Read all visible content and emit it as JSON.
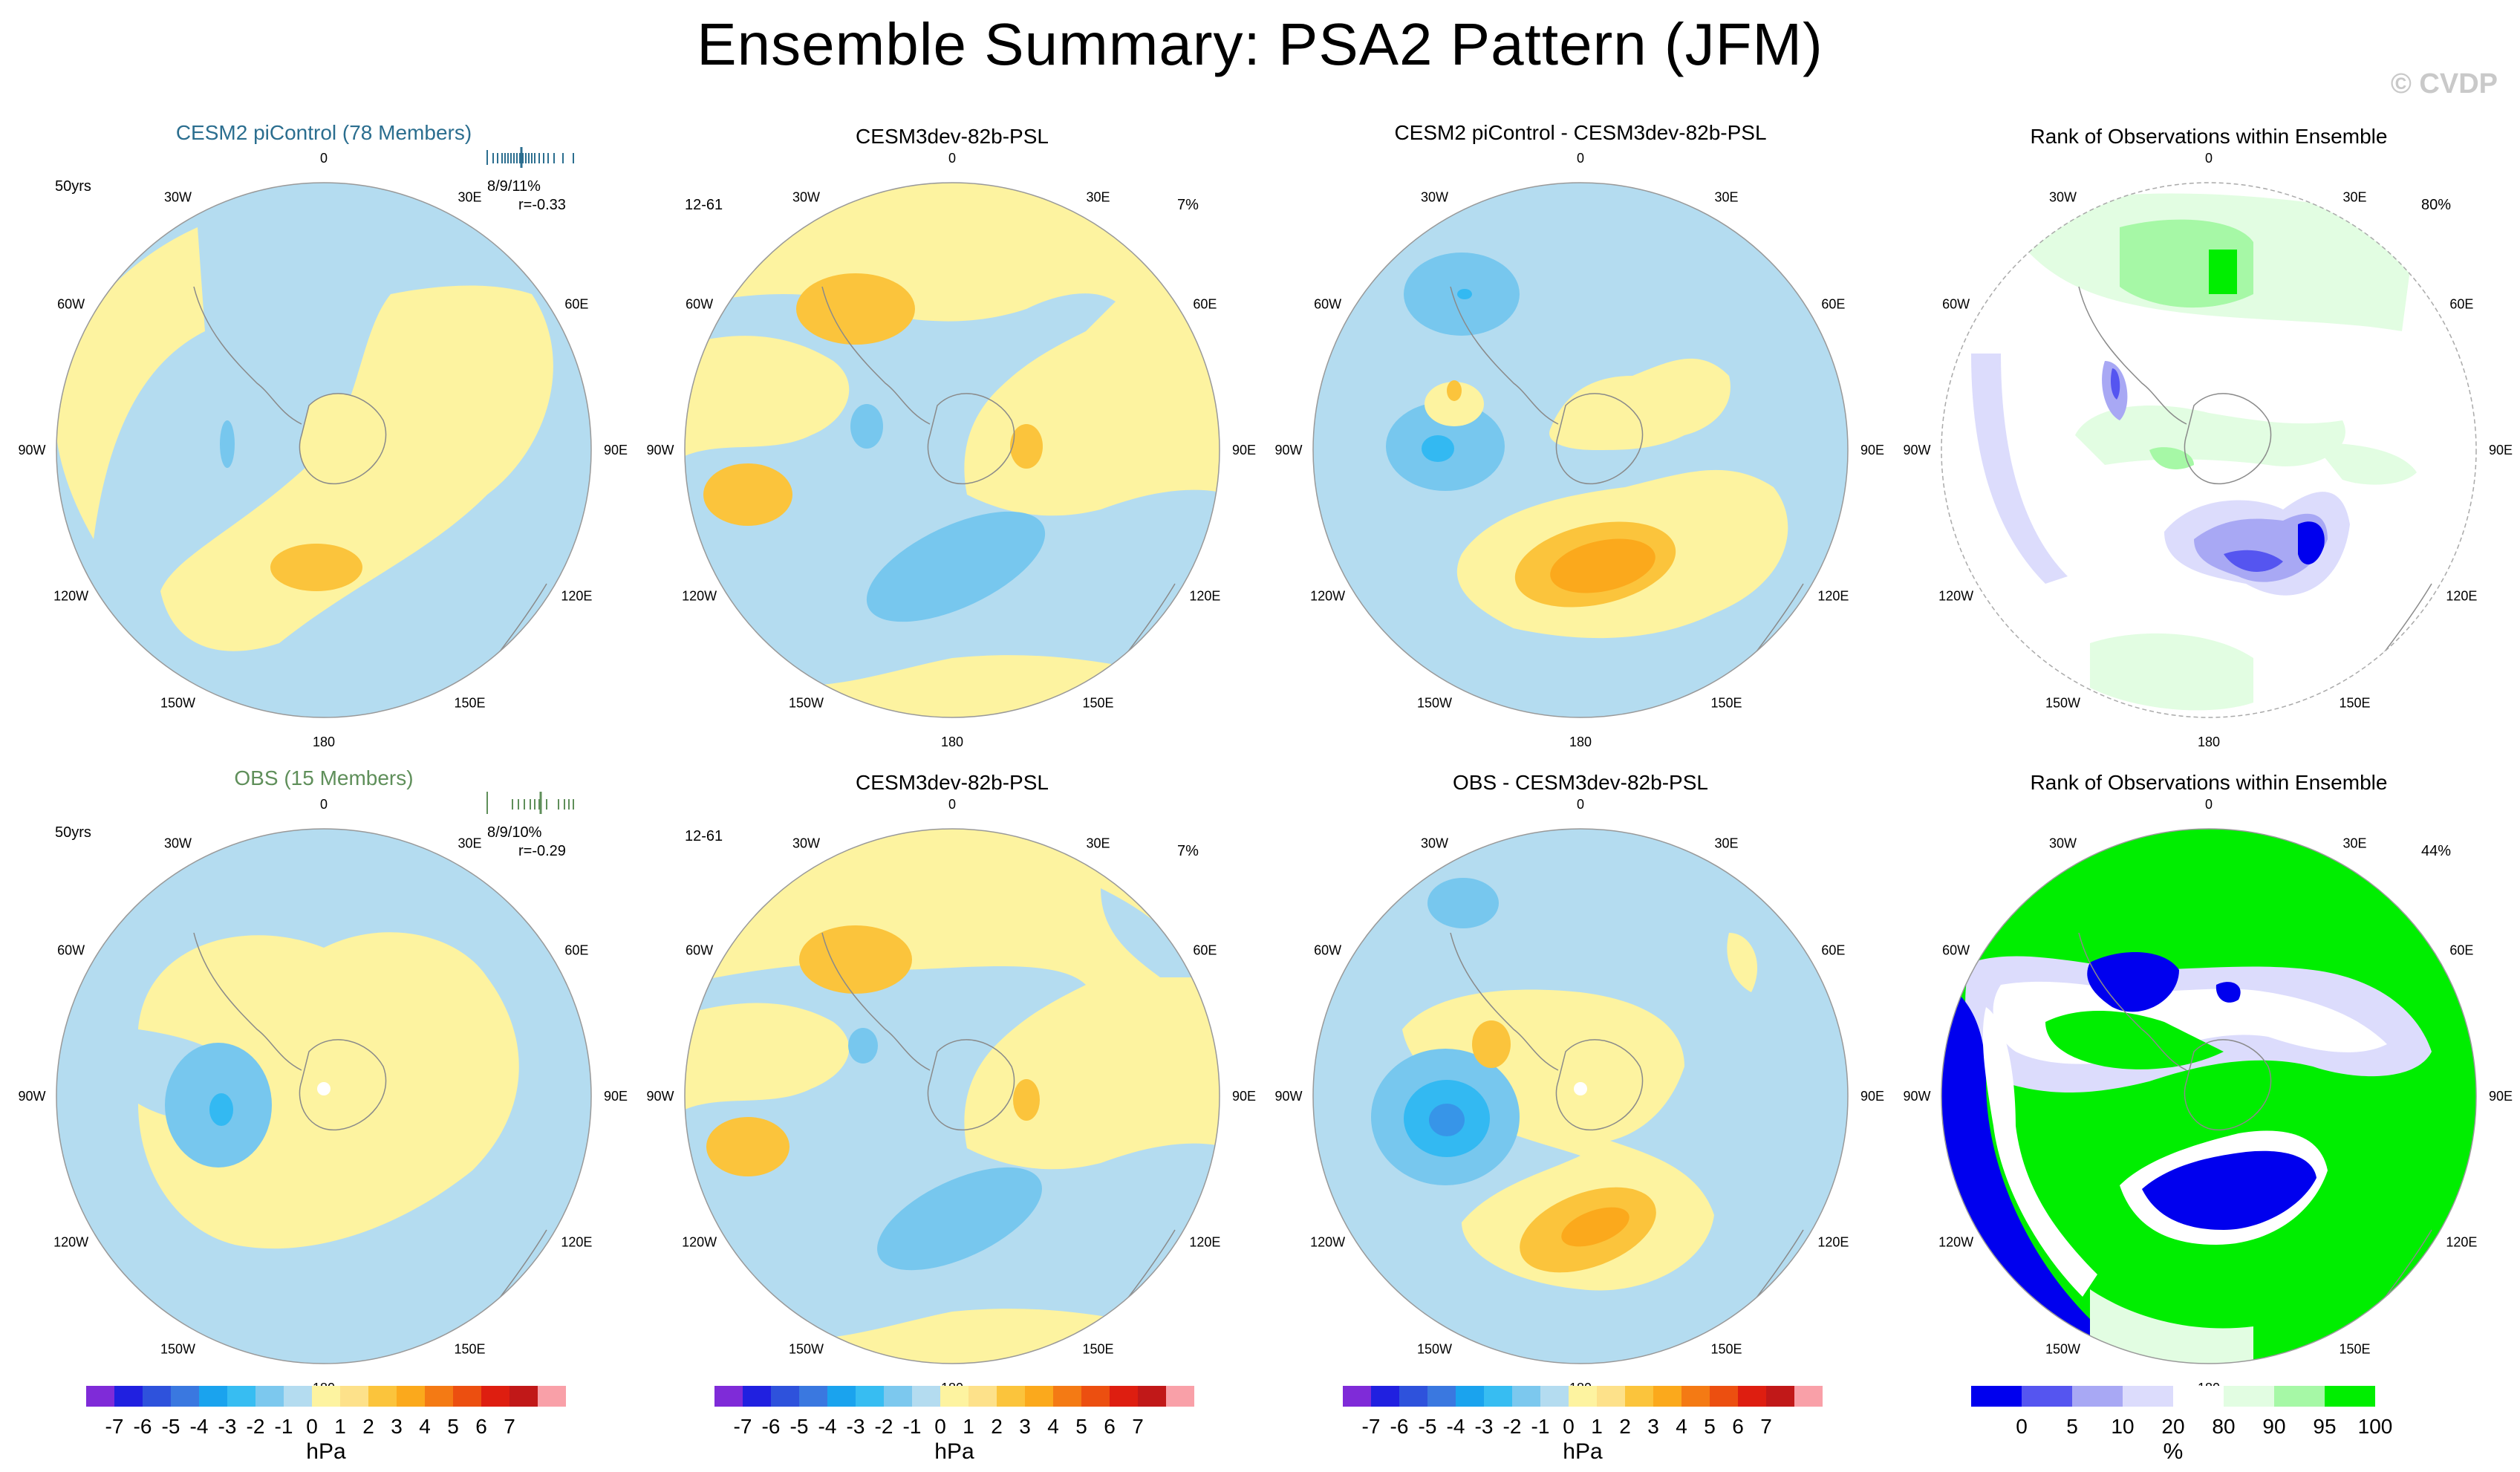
{
  "title": "Ensemble Summary: PSA2 Pattern (JFM)",
  "copyright": "© CVDP",
  "colors": {
    "title_ens1": "#2b6e8f",
    "title_ens2": "#5f8f5a",
    "ocean_neg": "#b4dcf0",
    "land_pos": "#fdf3a0",
    "pos1": "#fde18a",
    "pos2": "#fbc43c",
    "pos3": "#fba91c",
    "neg2": "#77c7ee",
    "neg3": "#33b9f2",
    "coast": "#8a8a8a"
  },
  "lon_labels": [
    "0",
    "30E",
    "60E",
    "90E",
    "120E",
    "150E",
    "180",
    "150W",
    "120W",
    "90W",
    "60W",
    "30W"
  ],
  "panels": [
    {
      "title": "CESM2 piControl (78 Members)",
      "left": "50yrs",
      "stats": "8/9/11%",
      "r": "r=-0.33",
      "pct": ""
    },
    {
      "title": "CESM3dev-82b-PSL",
      "left": "12-61",
      "stats": "",
      "r": "",
      "pct": "7%"
    },
    {
      "title": "CESM2 piControl - CESM3dev-82b-PSL",
      "left": "",
      "stats": "",
      "r": "",
      "pct": ""
    },
    {
      "title": "Rank of Observations within Ensemble",
      "left": "",
      "stats": "",
      "r": "",
      "pct": "80%"
    },
    {
      "title": "OBS (15 Members)",
      "left": "50yrs",
      "stats": "8/9/10%",
      "r": "r=-0.29",
      "pct": ""
    },
    {
      "title": "CESM3dev-82b-PSL",
      "left": "12-61",
      "stats": "",
      "r": "",
      "pct": "7%"
    },
    {
      "title": "OBS - CESM3dev-82b-PSL",
      "left": "",
      "stats": "",
      "r": "",
      "pct": ""
    },
    {
      "title": "Rank of Observations within Ensemble",
      "left": "",
      "stats": "",
      "r": "",
      "pct": "44%"
    }
  ],
  "chart_data": [
    {
      "type": "colorbar",
      "name": "PSL",
      "units": "hPa",
      "tick_labels": [
        "-7",
        "-6",
        "-5",
        "-4",
        "-3",
        "-2",
        "-1",
        "0",
        "1",
        "2",
        "3",
        "4",
        "5",
        "6",
        "7"
      ],
      "colors": [
        "#7f2bd8",
        "#2020e0",
        "#2e52dc",
        "#3a78e0",
        "#1aa3ee",
        "#37bdf2",
        "#7cc8ee",
        "#b4dcf0",
        "#fdf3a0",
        "#fde18a",
        "#fbc43c",
        "#fba91c",
        "#f47a14",
        "#ec4f10",
        "#de1e10",
        "#c11818",
        "#f9a0a8"
      ]
    },
    {
      "type": "colorbar",
      "name": "rank",
      "units": "%",
      "tick_labels": [
        "0",
        "5",
        "10",
        "20",
        "80",
        "90",
        "95",
        "100"
      ],
      "colors": [
        "#0000ee",
        "#5555f0",
        "#a8a8f4",
        "#dcdcfc",
        "#ffffff",
        "#e2fde2",
        "#a6f8a6",
        "#00ee00"
      ]
    }
  ]
}
